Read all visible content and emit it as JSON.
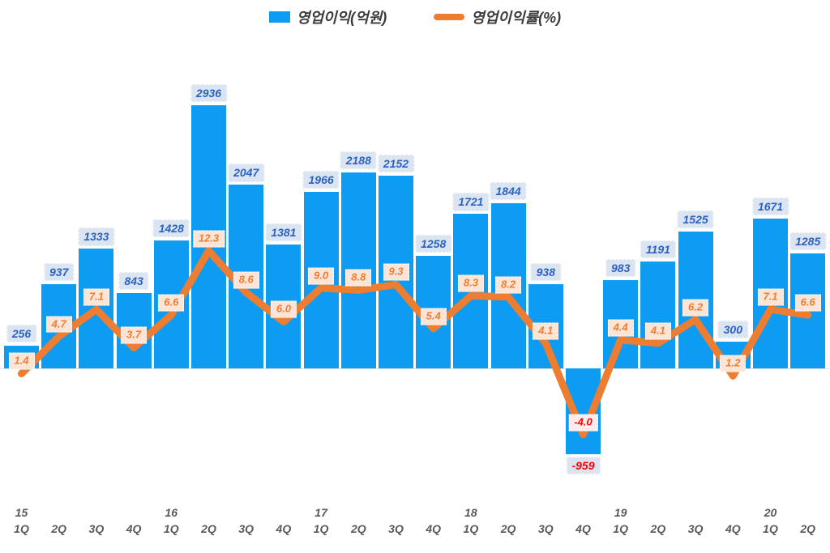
{
  "legend": {
    "position": "top",
    "bar_label": "영업이익(억원)",
    "line_label": "영업이익률(%)"
  },
  "colors": {
    "bar": "#0d9cf2",
    "line": "#ed7d31",
    "bar_label_bg": "#dbe5f2",
    "bar_label_text": "#2d62c1",
    "line_label_bg": "#fce5d6",
    "line_label_text": "#ed7d31",
    "negative_text": "#ff0000",
    "negative_line_label_bg": "#fdeceb",
    "axis_text": "#595959"
  },
  "chart_data": {
    "type": "bar+line",
    "title": "",
    "legend_position": "top",
    "categories": [
      "15 1Q",
      "15 2Q",
      "15 3Q",
      "15 4Q",
      "16 1Q",
      "16 2Q",
      "16 3Q",
      "16 4Q",
      "17 1Q",
      "17 2Q",
      "17 3Q",
      "17 4Q",
      "18 1Q",
      "18 2Q",
      "18 3Q",
      "18 4Q",
      "19 1Q",
      "19 2Q",
      "19 3Q",
      "19 4Q",
      "20 1Q",
      "20 2Q"
    ],
    "x_axis": {
      "quarter_labels": [
        "1Q",
        "2Q",
        "3Q",
        "4Q",
        "1Q",
        "2Q",
        "3Q",
        "4Q",
        "1Q",
        "2Q",
        "3Q",
        "4Q",
        "1Q",
        "2Q",
        "3Q",
        "4Q",
        "1Q",
        "2Q",
        "3Q",
        "4Q",
        "1Q",
        "2Q"
      ],
      "year_marks": [
        {
          "index": 0,
          "label": "15"
        },
        {
          "index": 4,
          "label": "16"
        },
        {
          "index": 8,
          "label": "17"
        },
        {
          "index": 12,
          "label": "18"
        },
        {
          "index": 16,
          "label": "19"
        },
        {
          "index": 20,
          "label": "20"
        }
      ]
    },
    "series": [
      {
        "name": "영업이익(억원)",
        "type": "bar",
        "values": [
          256,
          937,
          1333,
          843,
          1428,
          2936,
          2047,
          1381,
          1966,
          2188,
          2152,
          1258,
          1721,
          1844,
          938,
          -959,
          983,
          1191,
          1525,
          300,
          1671,
          1285
        ]
      },
      {
        "name": "영업이익률(%)",
        "type": "line",
        "values": [
          1.4,
          4.7,
          7.1,
          3.7,
          6.6,
          12.3,
          8.6,
          6.0,
          9.0,
          8.8,
          9.3,
          5.4,
          8.3,
          8.2,
          4.1,
          -4.0,
          4.4,
          4.1,
          6.2,
          1.2,
          7.1,
          6.6
        ]
      }
    ]
  }
}
